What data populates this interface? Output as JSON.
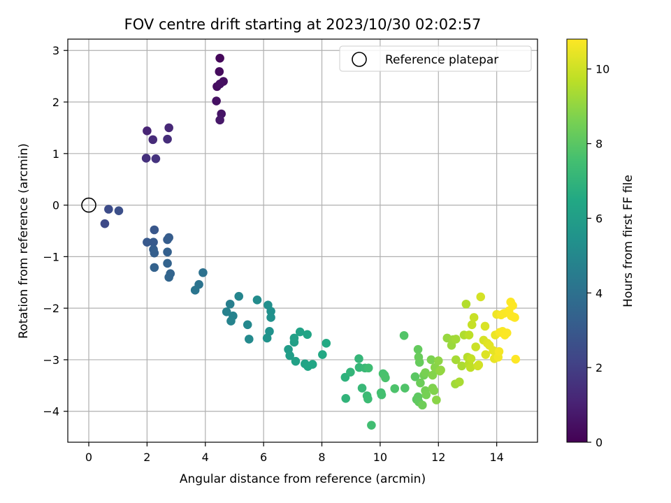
{
  "chart_data": {
    "type": "scatter",
    "title": "FOV centre drift starting at 2023/10/30 02:02:57",
    "xlabel": "Angular distance from reference (arcmin)",
    "ylabel": "Rotation from reference (arcmin)",
    "xlim": [
      -0.72,
      15.4
    ],
    "ylim": [
      -4.6,
      3.22
    ],
    "xticks": [
      0,
      2,
      4,
      6,
      8,
      10,
      12,
      14
    ],
    "yticks": [
      -4,
      -3,
      -2,
      -1,
      0,
      1,
      2,
      3
    ],
    "grid": true,
    "colormap": "viridis",
    "colorbar": {
      "label": "Hours from first FF file",
      "range": [
        0,
        10.8
      ],
      "ticks": [
        0,
        2,
        4,
        6,
        8,
        10
      ]
    },
    "reference": {
      "x": 0,
      "y": 0,
      "label": "Reference platepar"
    },
    "legend_position": "upper right",
    "points": [
      [
        4.5,
        2.85,
        0.2
      ],
      [
        4.48,
        2.59,
        0.3
      ],
      [
        4.4,
        2.3,
        0.35
      ],
      [
        4.62,
        2.4,
        0.4
      ],
      [
        4.5,
        2.35,
        0.45
      ],
      [
        4.38,
        2.02,
        0.5
      ],
      [
        4.55,
        1.77,
        0.6
      ],
      [
        4.5,
        1.65,
        0.7
      ],
      [
        2.0,
        1.44,
        1.1
      ],
      [
        2.75,
        1.5,
        1.2
      ],
      [
        2.2,
        1.27,
        1.3
      ],
      [
        2.7,
        1.28,
        1.4
      ],
      [
        1.97,
        0.91,
        1.5
      ],
      [
        2.3,
        0.9,
        1.6
      ],
      [
        0.55,
        -0.36,
        2.4
      ],
      [
        0.68,
        -0.08,
        2.5
      ],
      [
        1.03,
        -0.11,
        2.6
      ],
      [
        2.25,
        -0.48,
        2.9
      ],
      [
        2.0,
        -0.72,
        3.0
      ],
      [
        2.22,
        -0.72,
        3.05
      ],
      [
        2.75,
        -0.63,
        3.1
      ],
      [
        2.7,
        -0.67,
        3.15
      ],
      [
        2.22,
        -0.86,
        3.2
      ],
      [
        2.25,
        -0.93,
        3.25
      ],
      [
        2.7,
        -0.91,
        3.3
      ],
      [
        2.25,
        -1.21,
        3.35
      ],
      [
        2.7,
        -1.13,
        3.4
      ],
      [
        2.8,
        -1.33,
        3.45
      ],
      [
        2.75,
        -1.4,
        3.5
      ],
      [
        3.92,
        -1.31,
        4.0
      ],
      [
        3.78,
        -1.54,
        4.1
      ],
      [
        3.65,
        -1.65,
        4.2
      ],
      [
        4.85,
        -1.92,
        4.6
      ],
      [
        4.73,
        -2.07,
        4.7
      ],
      [
        4.95,
        -2.15,
        4.75
      ],
      [
        4.88,
        -2.25,
        4.8
      ],
      [
        5.15,
        -1.77,
        4.9
      ],
      [
        5.45,
        -2.32,
        5.0
      ],
      [
        5.5,
        -2.6,
        5.1
      ],
      [
        5.78,
        -1.84,
        5.2
      ],
      [
        6.15,
        -1.94,
        5.3
      ],
      [
        6.25,
        -2.06,
        5.35
      ],
      [
        6.25,
        -2.18,
        5.4
      ],
      [
        6.2,
        -2.45,
        5.45
      ],
      [
        6.12,
        -2.58,
        5.5
      ],
      [
        6.85,
        -2.8,
        5.9
      ],
      [
        6.9,
        -2.92,
        6.0
      ],
      [
        7.05,
        -2.66,
        6.05
      ],
      [
        7.05,
        -2.58,
        6.1
      ],
      [
        7.1,
        -3.03,
        6.15
      ],
      [
        7.25,
        -2.46,
        6.2
      ],
      [
        7.42,
        -3.08,
        6.25
      ],
      [
        7.5,
        -2.51,
        6.3
      ],
      [
        7.52,
        -3.13,
        6.35
      ],
      [
        7.68,
        -3.09,
        6.4
      ],
      [
        8.02,
        -2.9,
        6.5
      ],
      [
        8.15,
        -2.68,
        6.55
      ],
      [
        8.8,
        -3.34,
        6.9
      ],
      [
        8.82,
        -3.75,
        7.0
      ],
      [
        8.98,
        -3.24,
        7.05
      ],
      [
        9.27,
        -2.98,
        7.1
      ],
      [
        9.28,
        -3.15,
        7.15
      ],
      [
        9.38,
        -3.55,
        7.2
      ],
      [
        9.48,
        -3.16,
        7.25
      ],
      [
        9.55,
        -3.7,
        7.3
      ],
      [
        9.58,
        -3.76,
        7.35
      ],
      [
        9.6,
        -3.16,
        7.4
      ],
      [
        9.7,
        -4.27,
        7.45
      ],
      [
        10.03,
        -3.64,
        7.5
      ],
      [
        10.05,
        -3.68,
        7.55
      ],
      [
        10.1,
        -3.27,
        7.6
      ],
      [
        10.15,
        -3.3,
        7.65
      ],
      [
        10.18,
        -3.35,
        7.7
      ],
      [
        10.5,
        -3.56,
        7.75
      ],
      [
        10.85,
        -3.55,
        7.8
      ],
      [
        10.82,
        -2.53,
        7.85
      ],
      [
        11.2,
        -3.33,
        8.0
      ],
      [
        11.25,
        -3.77,
        8.05
      ],
      [
        11.3,
        -3.72,
        8.1
      ],
      [
        11.33,
        -3.82,
        8.15
      ],
      [
        11.3,
        -2.8,
        8.2
      ],
      [
        11.35,
        -3.05,
        8.25
      ],
      [
        11.32,
        -2.95,
        8.3
      ],
      [
        11.38,
        -3.45,
        8.35
      ],
      [
        11.45,
        -3.88,
        8.4
      ],
      [
        11.5,
        -3.3,
        8.45
      ],
      [
        11.55,
        -3.6,
        8.5
      ],
      [
        11.58,
        -3.68,
        8.55
      ],
      [
        11.55,
        -3.25,
        8.6
      ],
      [
        11.75,
        -3.0,
        8.65
      ],
      [
        11.8,
        -3.55,
        8.7
      ],
      [
        11.85,
        -3.6,
        8.75
      ],
      [
        11.8,
        -3.3,
        8.8
      ],
      [
        11.88,
        -3.15,
        8.85
      ],
      [
        11.93,
        -3.78,
        8.9
      ],
      [
        12.0,
        -3.02,
        8.95
      ],
      [
        12.05,
        -3.22,
        9.0
      ],
      [
        12.08,
        -3.2,
        9.05
      ],
      [
        12.3,
        -2.58,
        9.1
      ],
      [
        12.45,
        -2.72,
        9.15
      ],
      [
        12.5,
        -2.61,
        9.2
      ],
      [
        12.58,
        -3.47,
        9.25
      ],
      [
        12.6,
        -2.6,
        9.3
      ],
      [
        12.6,
        -3.0,
        9.35
      ],
      [
        12.72,
        -3.43,
        9.4
      ],
      [
        12.8,
        -3.12,
        9.45
      ],
      [
        12.88,
        -2.52,
        9.5
      ],
      [
        12.95,
        -1.92,
        9.55
      ],
      [
        13.0,
        -2.95,
        9.6
      ],
      [
        13.05,
        -3.08,
        9.65
      ],
      [
        13.05,
        -2.52,
        9.7
      ],
      [
        13.1,
        -3.15,
        9.75
      ],
      [
        13.12,
        -2.98,
        9.8
      ],
      [
        13.15,
        -2.32,
        9.85
      ],
      [
        13.22,
        -2.18,
        9.9
      ],
      [
        13.28,
        -2.75,
        9.95
      ],
      [
        13.35,
        -3.12,
        10.0
      ],
      [
        13.38,
        -3.1,
        10.05
      ],
      [
        13.45,
        -1.78,
        10.1
      ],
      [
        13.55,
        -2.62,
        10.15
      ],
      [
        13.6,
        -2.35,
        10.2
      ],
      [
        13.62,
        -2.9,
        10.25
      ],
      [
        13.68,
        -2.68,
        10.3
      ],
      [
        13.75,
        -2.72,
        10.35
      ],
      [
        13.88,
        -2.82,
        10.4
      ],
      [
        13.92,
        -2.98,
        10.45
      ],
      [
        13.95,
        -2.52,
        10.5
      ],
      [
        14.0,
        -2.12,
        10.55
      ],
      [
        14.05,
        -2.95,
        10.6
      ],
      [
        14.08,
        -2.84,
        10.65
      ],
      [
        14.1,
        -2.47,
        10.7
      ],
      [
        14.15,
        -2.13,
        10.72
      ],
      [
        14.2,
        -2.45,
        10.74
      ],
      [
        14.25,
        -2.1,
        10.75
      ],
      [
        14.28,
        -2.52,
        10.76
      ],
      [
        14.35,
        -2.48,
        10.77
      ],
      [
        14.42,
        -2.05,
        10.78
      ],
      [
        14.48,
        -1.88,
        10.79
      ],
      [
        14.5,
        -2.15,
        10.8
      ],
      [
        14.55,
        -1.95,
        10.8
      ],
      [
        14.58,
        -2.17,
        10.8
      ],
      [
        14.62,
        -2.18,
        10.8
      ],
      [
        14.65,
        -2.99,
        10.8
      ]
    ]
  }
}
